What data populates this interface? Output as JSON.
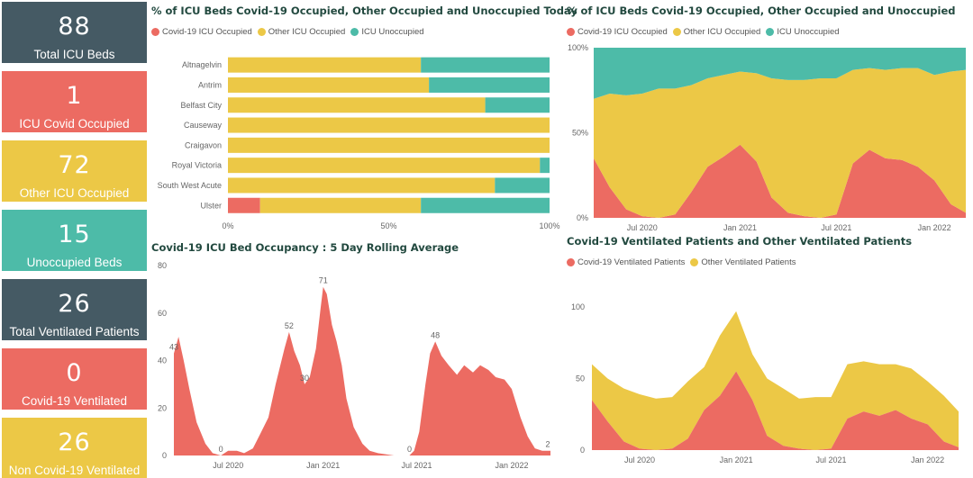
{
  "colors": {
    "covid": "#ec6b62",
    "other": "#ecc846",
    "unoccupied": "#4dbba8",
    "dark": "#455a64"
  },
  "kpis": [
    {
      "value": "88",
      "label": "Total ICU Beds",
      "color": "#455a64"
    },
    {
      "value": "1",
      "label": "ICU Covid Occupied",
      "color": "#ec6b62"
    },
    {
      "value": "72",
      "label": "Other ICU Occupied",
      "color": "#ecc846"
    },
    {
      "value": "15",
      "label": "Unoccupied Beds",
      "color": "#4dbba8"
    },
    {
      "value": "26",
      "label": "Total Ventilated Patients",
      "color": "#455a64"
    },
    {
      "value": "0",
      "label": "Covid-19 Ventilated",
      "color": "#ec6b62"
    },
    {
      "value": "26",
      "label": "Non Covid-19 Ventilated",
      "color": "#ecc846"
    }
  ],
  "panels": {
    "today": {
      "title": "% of ICU Beds Covid-19 Occupied, Other Occupied and Unoccupied Today",
      "legend": [
        "Covid-19 ICU Occupied",
        "Other ICU Occupied",
        "ICU Unoccupied"
      ]
    },
    "history": {
      "title": "% of ICU Beds Covid-19 Occupied, Other Occupied and Unoccupied",
      "legend": [
        "Covid-19 ICU Occupied",
        "Other ICU Occupied",
        "ICU Unoccupied"
      ]
    },
    "rolling": {
      "title": "Covid-19 ICU Bed Occupancy : 5 Day Rolling Average"
    },
    "ventilated": {
      "title": "Covid-19 Ventilated Patients and Other Ventilated Patients",
      "legend": [
        "Covid-19 Ventilated Patients",
        "Other Ventilated Patients"
      ]
    }
  },
  "chart_data": [
    {
      "type": "bar",
      "orientation": "horizontal",
      "stacked": "100%",
      "title": "% of ICU Beds Covid-19 Occupied, Other Occupied and Unoccupied Today",
      "categories": [
        "Altnagelvin",
        "Antrim",
        "Belfast City",
        "Causeway",
        "Craigavon",
        "Royal Victoria",
        "South West Acute",
        "Ulster"
      ],
      "series": [
        {
          "name": "Covid-19 ICU Occupied",
          "values": [
            0,
            0,
            0,
            0,
            0,
            0,
            0,
            10
          ]
        },
        {
          "name": "Other ICU Occupied",
          "values": [
            60,
            62.5,
            80,
            100,
            100,
            97,
            83,
            50
          ]
        },
        {
          "name": "ICU Unoccupied",
          "values": [
            40,
            37.5,
            20,
            0,
            0,
            3,
            17,
            40
          ]
        }
      ],
      "xticks": [
        "0%",
        "50%",
        "100%"
      ],
      "xlim": [
        0,
        100
      ],
      "legend": "top"
    },
    {
      "type": "area",
      "stacked": "100%",
      "title": "% of ICU Beds Covid-19 Occupied, Other Occupied and Unoccupied",
      "x": [
        "2020-04",
        "2020-05",
        "2020-06",
        "2020-07",
        "2020-08",
        "2020-09",
        "2020-10",
        "2020-11",
        "2020-12",
        "2021-01",
        "2021-02",
        "2021-03",
        "2021-04",
        "2021-05",
        "2021-06",
        "2021-07",
        "2021-08",
        "2021-09",
        "2021-10",
        "2021-11",
        "2021-12",
        "2022-01",
        "2022-02",
        "2022-03"
      ],
      "series": [
        {
          "name": "Covid-19 ICU Occupied",
          "values": [
            35,
            18,
            5,
            1,
            0,
            2,
            15,
            30,
            36,
            43,
            33,
            12,
            3,
            1,
            0,
            2,
            32,
            40,
            35,
            34,
            30,
            22,
            8,
            3
          ]
        },
        {
          "name": "Other ICU Occupied",
          "values": [
            35,
            55,
            67,
            72,
            76,
            74,
            63,
            52,
            48,
            43,
            52,
            70,
            78,
            80,
            82,
            80,
            55,
            48,
            52,
            54,
            58,
            62,
            78,
            84
          ]
        },
        {
          "name": "ICU Unoccupied",
          "values": [
            30,
            27,
            28,
            27,
            24,
            24,
            22,
            18,
            16,
            14,
            15,
            18,
            19,
            19,
            18,
            18,
            13,
            12,
            13,
            12,
            12,
            16,
            14,
            13
          ]
        }
      ],
      "xticks": [
        "Jul 2020",
        "Jan 2021",
        "Jul 2021",
        "Jan 2022"
      ],
      "yticks": [
        "0%",
        "50%",
        "100%"
      ],
      "ylim": [
        0,
        100
      ],
      "legend": "top"
    },
    {
      "type": "area",
      "title": "Covid-19 ICU Bed Occupancy : 5 Day Rolling Average",
      "x": [
        "2020-04-01",
        "2020-04-10",
        "2020-04-20",
        "2020-05-01",
        "2020-05-15",
        "2020-06-01",
        "2020-06-15",
        "2020-07-01",
        "2020-07-15",
        "2020-08-01",
        "2020-08-15",
        "2020-09-01",
        "2020-09-15",
        "2020-10-01",
        "2020-10-15",
        "2020-11-01",
        "2020-11-10",
        "2020-11-20",
        "2020-12-01",
        "2020-12-10",
        "2020-12-20",
        "2021-01-01",
        "2021-01-10",
        "2021-01-15",
        "2021-01-22",
        "2021-02-01",
        "2021-02-10",
        "2021-02-20",
        "2021-03-01",
        "2021-03-15",
        "2021-04-01",
        "2021-04-15",
        "2021-05-01",
        "2021-06-01",
        "2021-07-01",
        "2021-07-10",
        "2021-07-20",
        "2021-08-01",
        "2021-08-10",
        "2021-08-20",
        "2021-09-01",
        "2021-09-15",
        "2021-10-01",
        "2021-10-15",
        "2021-11-01",
        "2021-11-15",
        "2021-12-01",
        "2021-12-15",
        "2022-01-01",
        "2022-01-15",
        "2022-02-01",
        "2022-02-15",
        "2022-03-01",
        "2022-03-15",
        "2022-03-31"
      ],
      "values": [
        43,
        50,
        40,
        28,
        14,
        5,
        1,
        0,
        2,
        2,
        1,
        3,
        9,
        16,
        30,
        45,
        52,
        44,
        38,
        30,
        33,
        45,
        62,
        71,
        68,
        55,
        48,
        38,
        24,
        12,
        5,
        2,
        1,
        0,
        0,
        2,
        10,
        30,
        43,
        48,
        42,
        38,
        34,
        38,
        35,
        38,
        36,
        33,
        32,
        28,
        16,
        8,
        3,
        2,
        2
      ],
      "annotations": [
        {
          "x": "2020-04-01",
          "label": "43"
        },
        {
          "x": "2020-07-01",
          "label": "0"
        },
        {
          "x": "2020-11-10",
          "label": "52"
        },
        {
          "x": "2020-12-10",
          "label": "30"
        },
        {
          "x": "2021-01-15",
          "label": "71"
        },
        {
          "x": "2021-07-01",
          "label": "0"
        },
        {
          "x": "2021-08-20",
          "label": "48"
        },
        {
          "x": "2022-03-31",
          "label": "2"
        }
      ],
      "xticks": [
        "Jul 2020",
        "Jan 2021",
        "Jul 2021",
        "Jan 2022"
      ],
      "yticks": [
        0,
        20,
        40,
        60,
        80
      ],
      "ylim": [
        0,
        80
      ]
    },
    {
      "type": "area",
      "stacked": true,
      "title": "Covid-19 Ventilated Patients and Other Ventilated Patients",
      "x": [
        "2020-04",
        "2020-05",
        "2020-06",
        "2020-07",
        "2020-08",
        "2020-09",
        "2020-10",
        "2020-11",
        "2020-12",
        "2021-01",
        "2021-02",
        "2021-03",
        "2021-04",
        "2021-05",
        "2021-06",
        "2021-07",
        "2021-08",
        "2021-09",
        "2021-10",
        "2021-11",
        "2021-12",
        "2022-01",
        "2022-02",
        "2022-03"
      ],
      "series": [
        {
          "name": "Covid-19 Ventilated Patients",
          "values": [
            35,
            20,
            6,
            1,
            0,
            1,
            8,
            28,
            38,
            55,
            35,
            10,
            3,
            1,
            0,
            1,
            22,
            27,
            24,
            28,
            22,
            18,
            6,
            2
          ]
        },
        {
          "name": "Other Ventilated Patients",
          "values": [
            25,
            30,
            37,
            38,
            36,
            36,
            40,
            30,
            42,
            42,
            32,
            40,
            40,
            35,
            37,
            36,
            38,
            35,
            36,
            32,
            35,
            30,
            32,
            25
          ]
        }
      ],
      "xticks": [
        "Jul 2020",
        "Jan 2021",
        "Jul 2021",
        "Jan 2022"
      ],
      "yticks": [
        0,
        50,
        100
      ],
      "ylim": [
        0,
        100
      ],
      "legend": "top"
    }
  ]
}
